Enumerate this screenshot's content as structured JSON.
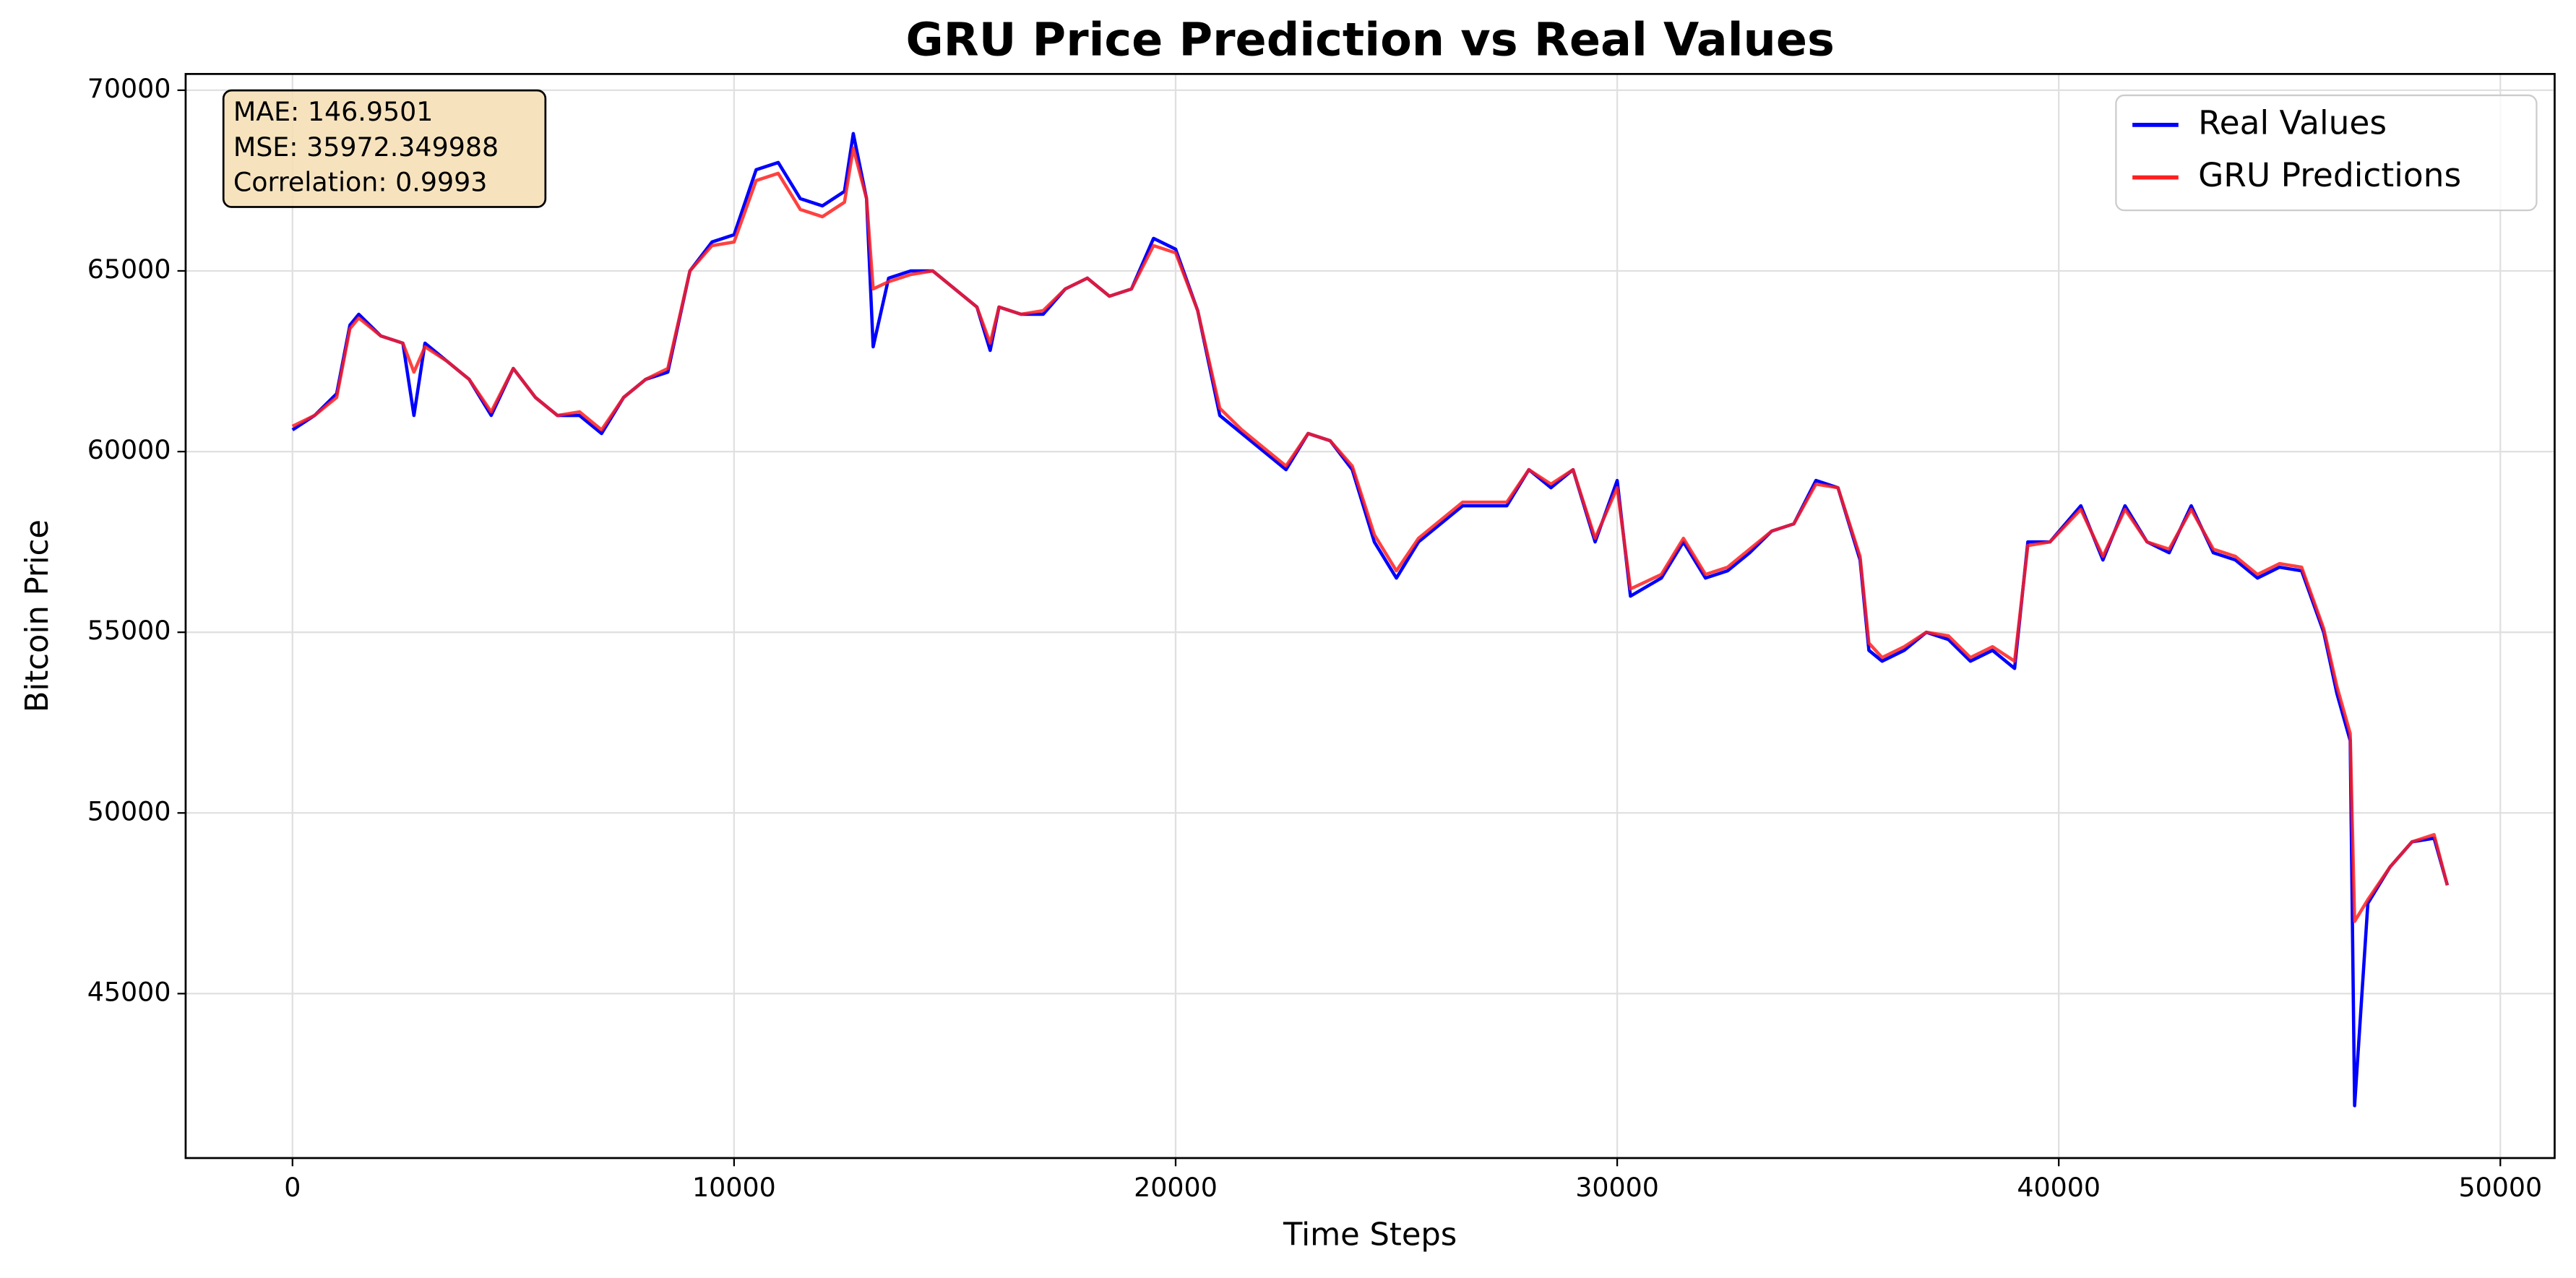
{
  "chart_data": {
    "type": "line",
    "title": "GRU Price Prediction vs Real Values",
    "xlabel": "Time Steps",
    "ylabel": "Bitcoin Price",
    "annotation": [
      "MAE: 146.9501",
      "MSE: 35972.349988",
      "Correlation: 0.9993"
    ],
    "xlim": [
      -2420,
      51230
    ],
    "ylim": [
      40450,
      70450
    ],
    "xticks": [
      0,
      10000,
      20000,
      30000,
      40000,
      50000
    ],
    "yticks": [
      45000,
      50000,
      55000,
      60000,
      65000,
      70000
    ],
    "grid": true,
    "legend": "upper right",
    "x": [
      0,
      500,
      1000,
      1300,
      1500,
      2000,
      2500,
      2750,
      3000,
      3500,
      4000,
      4500,
      5000,
      5500,
      6000,
      6500,
      7000,
      7500,
      8000,
      8500,
      9000,
      9500,
      10000,
      10500,
      11000,
      11500,
      12000,
      12500,
      12700,
      13000,
      13150,
      13500,
      14000,
      14500,
      15000,
      15500,
      15800,
      16000,
      16500,
      17000,
      17500,
      18000,
      18500,
      19000,
      19500,
      20000,
      20500,
      21000,
      21500,
      22000,
      22500,
      23000,
      23500,
      24000,
      24500,
      25000,
      25500,
      26000,
      26500,
      27000,
      27500,
      28000,
      28500,
      29000,
      29500,
      30000,
      30300,
      31000,
      31500,
      32000,
      32500,
      33000,
      33500,
      34000,
      34500,
      35000,
      35500,
      35700,
      36000,
      36500,
      37000,
      37500,
      38000,
      38500,
      39000,
      39300,
      39800,
      40500,
      41000,
      41500,
      42000,
      42500,
      43000,
      43500,
      44000,
      44500,
      45000,
      45500,
      46000,
      46300,
      46600,
      46700,
      47000,
      47500,
      48000,
      48500,
      48800
    ],
    "series": [
      {
        "name": "Real Values",
        "color": "#0000ff",
        "values": [
          60600,
          61000,
          61600,
          63500,
          63800,
          63200,
          63000,
          61000,
          63000,
          62500,
          62000,
          61000,
          62300,
          61500,
          61000,
          61000,
          60500,
          61500,
          62000,
          62200,
          65000,
          65800,
          66000,
          67800,
          68000,
          67000,
          66800,
          67200,
          68800,
          67000,
          62900,
          64800,
          65000,
          65000,
          64500,
          64000,
          62800,
          64000,
          63800,
          63800,
          64500,
          64800,
          64300,
          64500,
          65900,
          65600,
          63900,
          61000,
          60500,
          60000,
          59500,
          60500,
          60300,
          59500,
          57500,
          56500,
          57500,
          58000,
          58500,
          58500,
          58500,
          59500,
          59000,
          59500,
          57500,
          59200,
          56000,
          56500,
          57500,
          56500,
          56700,
          57200,
          57800,
          58000,
          59200,
          59000,
          57000,
          54500,
          54200,
          54500,
          55000,
          54800,
          54200,
          54500,
          54000,
          57500,
          57500,
          58500,
          57000,
          58500,
          57500,
          57200,
          58500,
          57200,
          57000,
          56500,
          56800,
          56700,
          55000,
          53300,
          52000,
          41900,
          47500,
          48500,
          49200,
          49300,
          48000
        ]
      },
      {
        "name": "GRU Predictions",
        "color": "#ff2020",
        "values": [
          60700,
          61000,
          61500,
          63400,
          63700,
          63200,
          63000,
          62200,
          62900,
          62500,
          62000,
          61100,
          62300,
          61500,
          61000,
          61100,
          60600,
          61500,
          62000,
          62300,
          65000,
          65700,
          65800,
          67500,
          67700,
          66700,
          66500,
          66900,
          68400,
          67000,
          64500,
          64700,
          64900,
          65000,
          64500,
          64000,
          63000,
          64000,
          63800,
          63900,
          64500,
          64800,
          64300,
          64500,
          65700,
          65500,
          63900,
          61200,
          60600,
          60100,
          59600,
          60500,
          60300,
          59600,
          57700,
          56700,
          57600,
          58100,
          58600,
          58600,
          58600,
          59500,
          59100,
          59500,
          57600,
          59000,
          56200,
          56600,
          57600,
          56600,
          56800,
          57300,
          57800,
          58000,
          59100,
          59000,
          57100,
          54700,
          54300,
          54600,
          55000,
          54900,
          54300,
          54600,
          54200,
          57400,
          57500,
          58400,
          57100,
          58400,
          57500,
          57300,
          58400,
          57300,
          57100,
          56600,
          56900,
          56800,
          55100,
          53500,
          52200,
          47000,
          47600,
          48500,
          49200,
          49400,
          48000
        ]
      }
    ]
  }
}
